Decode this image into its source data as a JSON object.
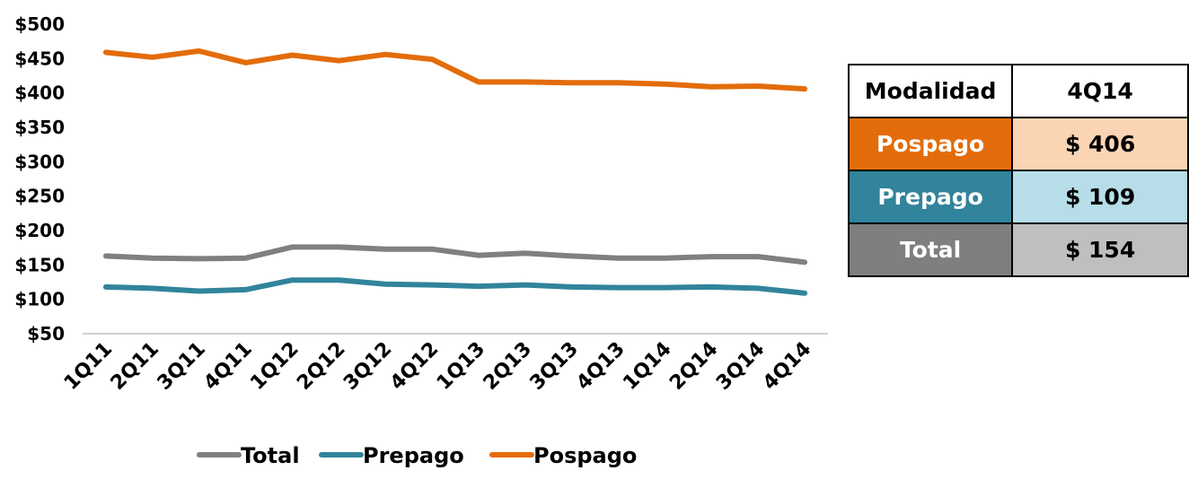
{
  "chart_data": {
    "type": "line",
    "categories": [
      "1Q11",
      "2Q11",
      "3Q11",
      "4Q11",
      "1Q12",
      "2Q12",
      "3Q12",
      "4Q12",
      "1Q13",
      "2Q13",
      "3Q13",
      "4Q13",
      "1Q14",
      "2Q14",
      "3Q14",
      "4Q14"
    ],
    "y_ticks": [
      "$50",
      "$100",
      "$150",
      "$200",
      "$250",
      "$300",
      "$350",
      "$400",
      "$450",
      "$500"
    ],
    "ylim": [
      50,
      500
    ],
    "grid": false,
    "legend_position": "bottom",
    "series": [
      {
        "name": "Total",
        "color": "#808080",
        "values": [
          163,
          160,
          159,
          160,
          176,
          176,
          173,
          173,
          164,
          167,
          163,
          160,
          160,
          162,
          162,
          154
        ]
      },
      {
        "name": "Prepago",
        "color": "#31849b",
        "values": [
          118,
          116,
          112,
          114,
          128,
          128,
          122,
          121,
          119,
          121,
          118,
          117,
          117,
          118,
          116,
          109
        ]
      },
      {
        "name": "Pospago",
        "color": "#e36c0a",
        "values": [
          459,
          452,
          461,
          444,
          455,
          447,
          456,
          449,
          416,
          416,
          415,
          415,
          413,
          409,
          410,
          406
        ]
      }
    ]
  },
  "table": {
    "header": {
      "col1": "Modalidad",
      "col2": "4Q14"
    },
    "rows": [
      {
        "label": "Pospago",
        "value": "$ 406"
      },
      {
        "label": "Prepago",
        "value": "$ 109"
      },
      {
        "label": "Total",
        "value": "$ 154"
      }
    ]
  }
}
